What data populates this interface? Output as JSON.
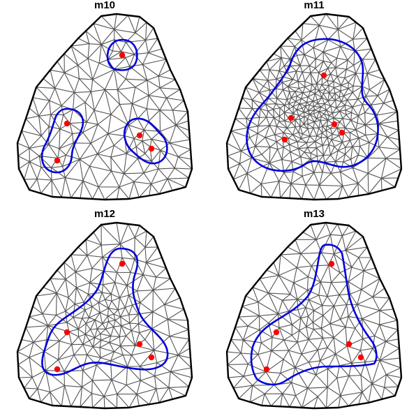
{
  "colors": {
    "background": "#ffffff",
    "mesh": "#555555",
    "boundary": "#000000",
    "contour": "#0000dd",
    "point": "#ff0000"
  },
  "panels": [
    {
      "id": "m10",
      "title": "m10",
      "points": 5
    },
    {
      "id": "m11",
      "title": "m11",
      "points": 5
    },
    {
      "id": "m12",
      "title": "m12",
      "points": 5
    },
    {
      "id": "m13",
      "title": "m13",
      "points": 5
    }
  ]
}
